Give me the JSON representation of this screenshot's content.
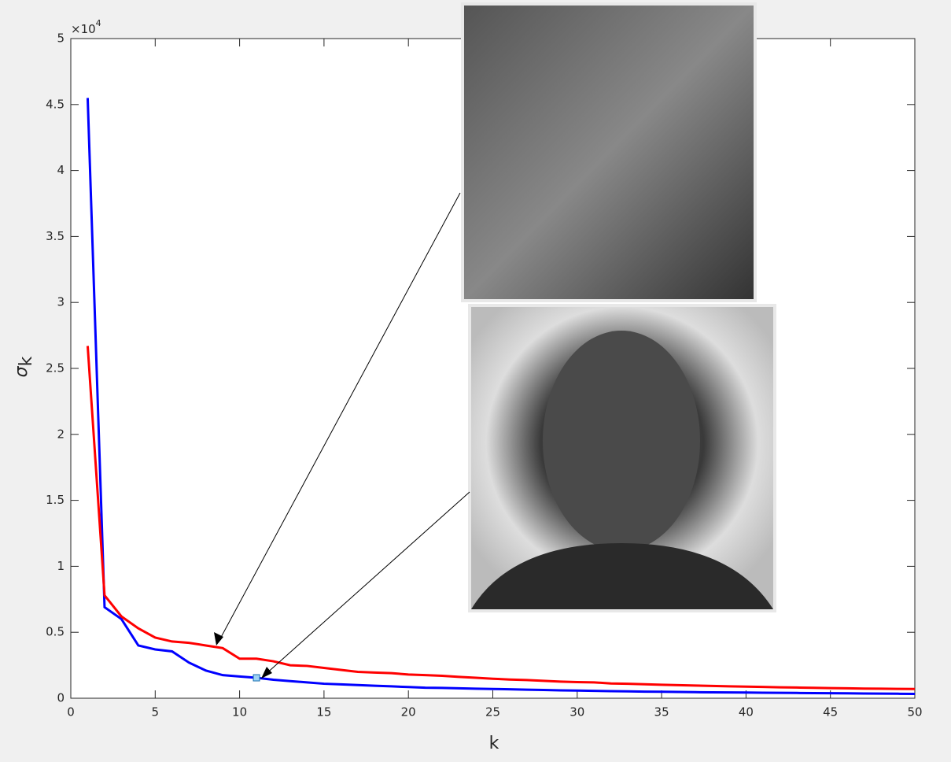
{
  "chart_data": {
    "type": "line",
    "ylabel": "σ",
    "ylabel_subscript": "k",
    "xlabel": "k",
    "y_exponent": "×10",
    "y_exponent_power": "4",
    "x": [
      1,
      2,
      3,
      4,
      5,
      6,
      7,
      8,
      9,
      10,
      11,
      12,
      13,
      14,
      15,
      16,
      17,
      18,
      19,
      20,
      21,
      22,
      23,
      24,
      25,
      26,
      27,
      28,
      29,
      30,
      31,
      32,
      33,
      34,
      35,
      36,
      37,
      38,
      39,
      40,
      41,
      42,
      43,
      44,
      45,
      46,
      47,
      48,
      49,
      50
    ],
    "series": [
      {
        "color": "#0000ff",
        "values": [
          4.55,
          0.69,
          0.6,
          0.4,
          0.37,
          0.355,
          0.27,
          0.21,
          0.175,
          0.165,
          0.155,
          0.14,
          0.13,
          0.12,
          0.11,
          0.105,
          0.1,
          0.095,
          0.09,
          0.085,
          0.08,
          0.078,
          0.075,
          0.072,
          0.07,
          0.068,
          0.065,
          0.063,
          0.06,
          0.058,
          0.056,
          0.054,
          0.052,
          0.05,
          0.049,
          0.048,
          0.046,
          0.045,
          0.044,
          0.043,
          0.042,
          0.041,
          0.04,
          0.039,
          0.038,
          0.037,
          0.036,
          0.035,
          0.034,
          0.033
        ]
      },
      {
        "color": "#ff0000",
        "values": [
          2.67,
          0.78,
          0.62,
          0.53,
          0.46,
          0.43,
          0.42,
          0.4,
          0.38,
          0.3,
          0.3,
          0.28,
          0.25,
          0.245,
          0.23,
          0.215,
          0.2,
          0.195,
          0.19,
          0.18,
          0.175,
          0.17,
          0.162,
          0.155,
          0.148,
          0.142,
          0.138,
          0.132,
          0.126,
          0.122,
          0.12,
          0.112,
          0.11,
          0.106,
          0.102,
          0.099,
          0.096,
          0.093,
          0.09,
          0.088,
          0.086,
          0.083,
          0.081,
          0.079,
          0.077,
          0.075,
          0.073,
          0.072,
          0.071,
          0.07
        ]
      }
    ],
    "datatip": {
      "series": 0,
      "point": 10
    },
    "xlim": [
      0,
      50
    ],
    "xticks": [
      0,
      5,
      10,
      15,
      20,
      25,
      30,
      35,
      40,
      45,
      50
    ],
    "ylim": [
      0,
      5
    ],
    "yticks": [
      0,
      0.5,
      1,
      1.5,
      2,
      2.5,
      3,
      3.5,
      4,
      4.5,
      5
    ]
  }
}
